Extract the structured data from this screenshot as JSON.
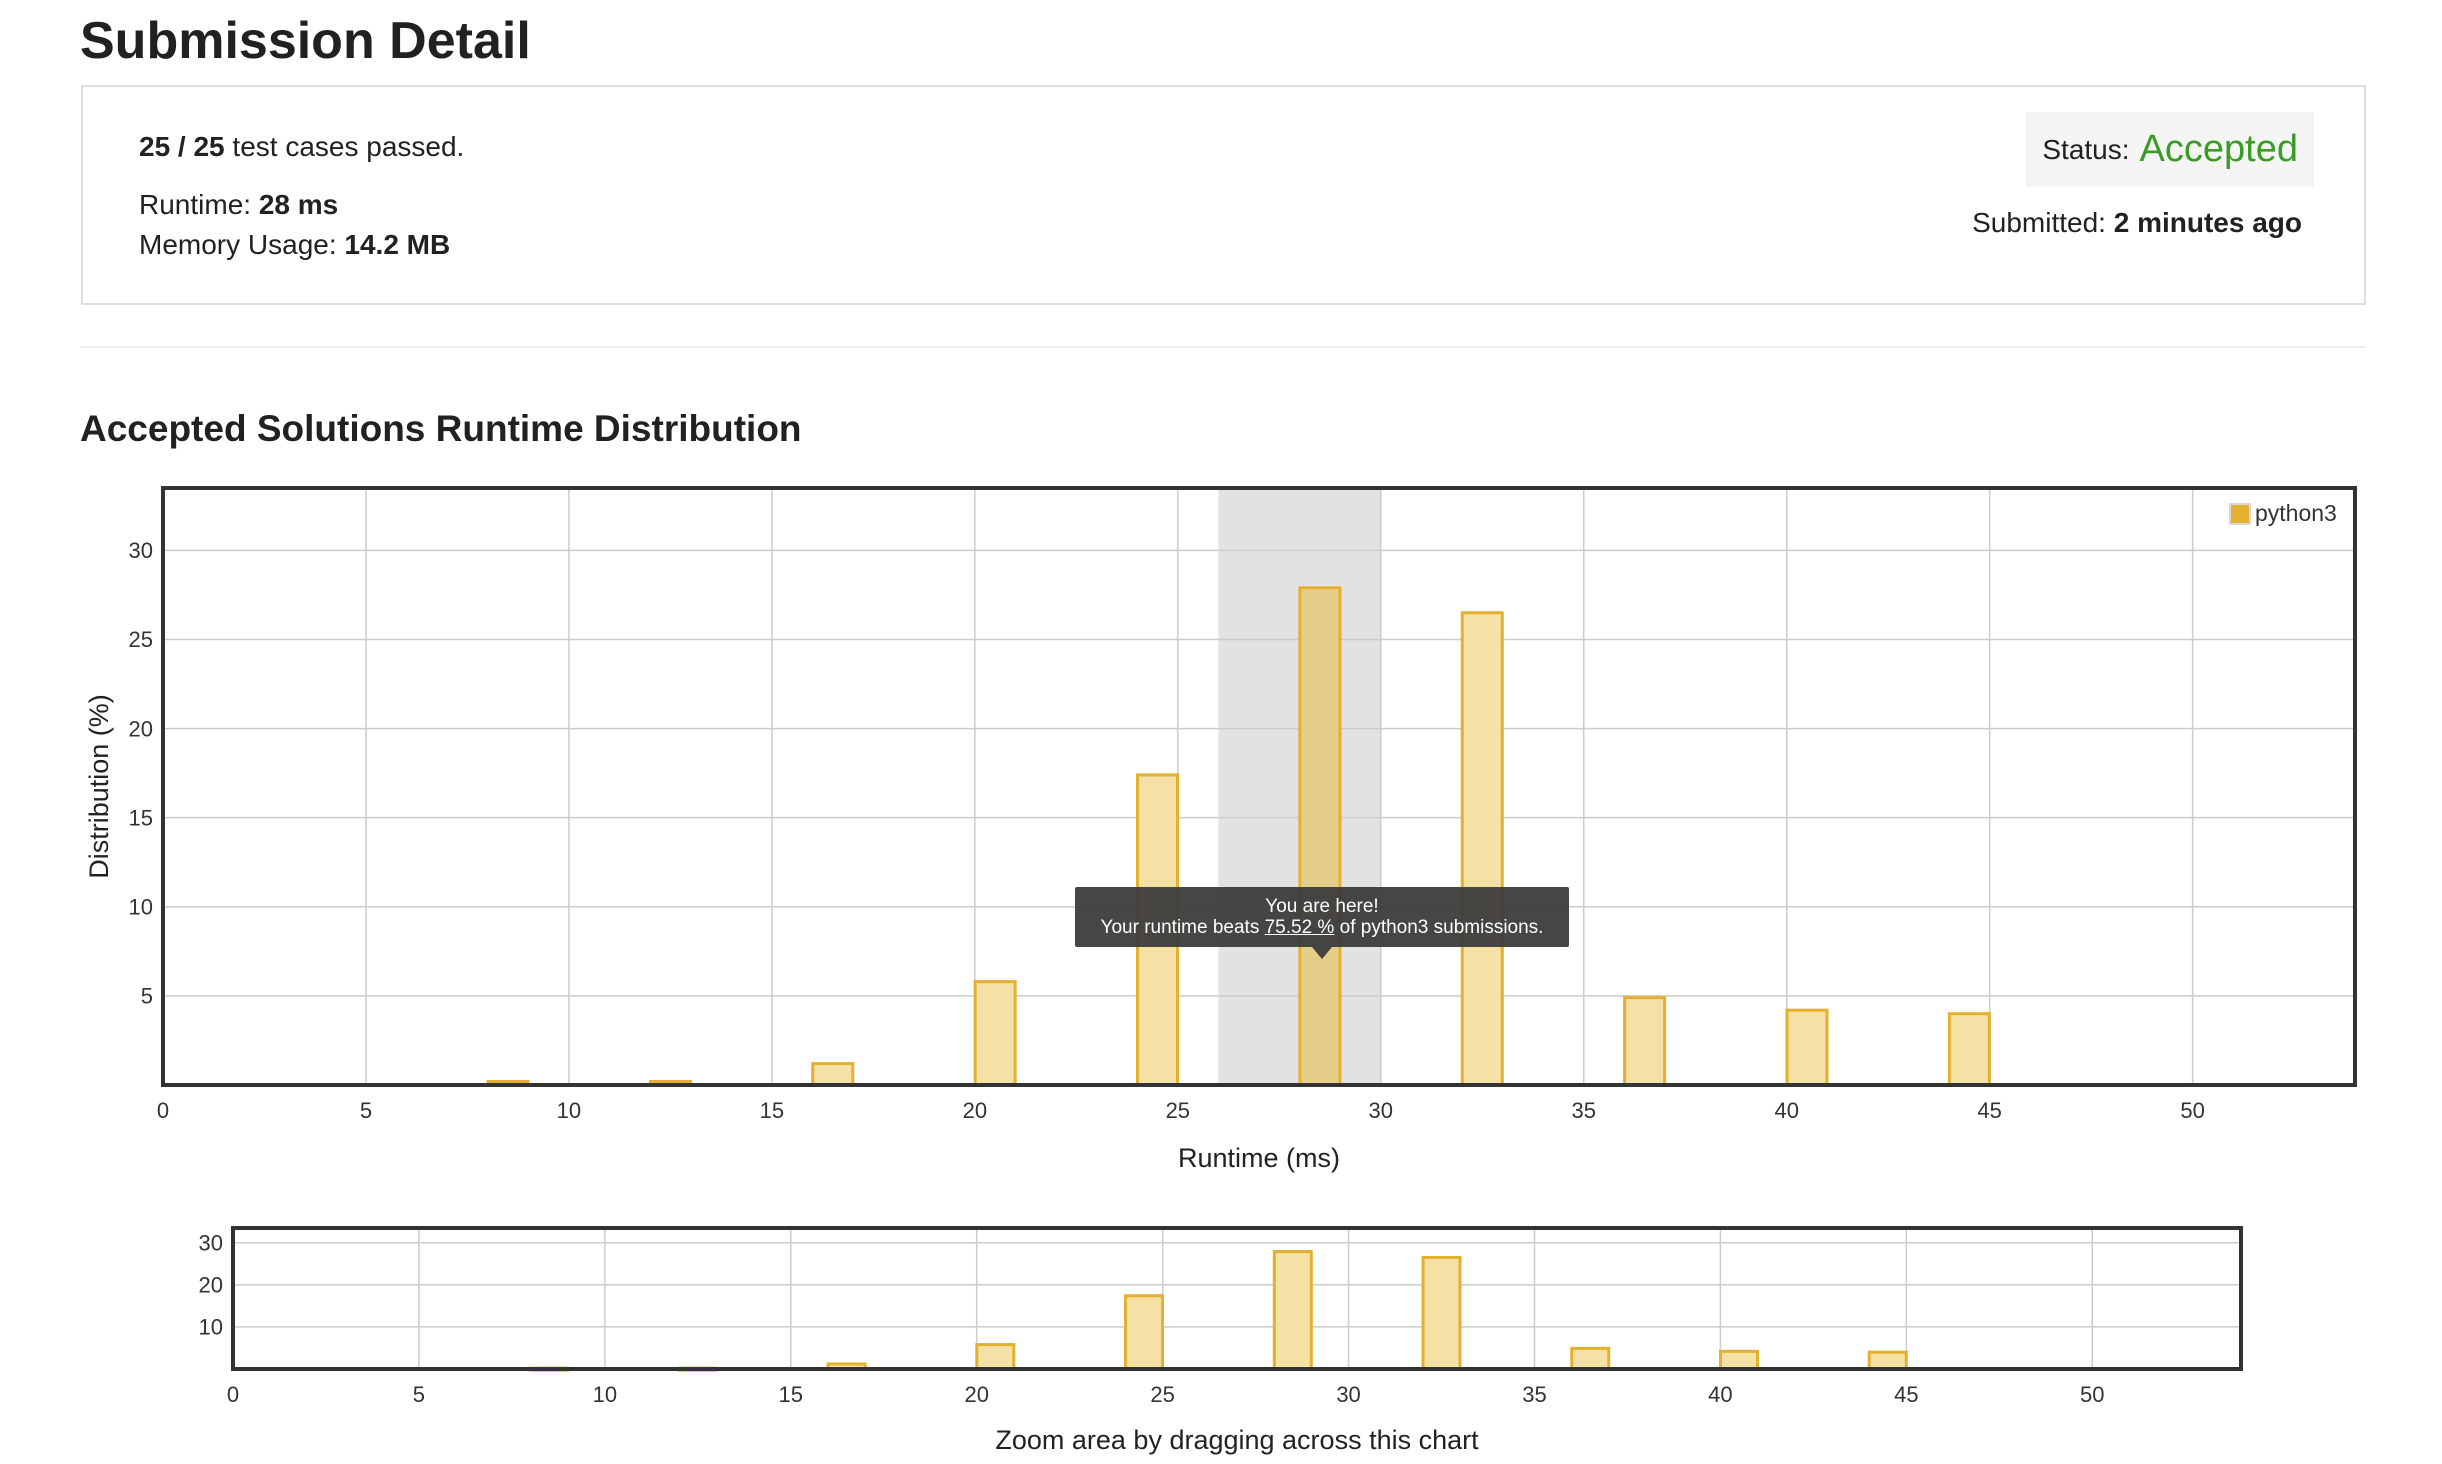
{
  "page": {
    "title": "Submission Detail"
  },
  "summary": {
    "passed": "25 / 25",
    "passed_suffix": "test cases passed.",
    "runtime_label": "Runtime:",
    "runtime_value": "28 ms",
    "memory_label": "Memory Usage:",
    "memory_value": "14.2 MB",
    "status_label": "Status:",
    "status_value": "Accepted",
    "status_color": "#3a9d23",
    "submitted_label": "Submitted:",
    "submitted_value": "2 minutes ago"
  },
  "section": {
    "title": "Accepted Solutions Runtime Distribution"
  },
  "tooltip": {
    "line1": "You are here!",
    "prefix": "Your runtime beats",
    "percent": "75.52 %",
    "suffix": "of python3 submissions."
  },
  "chart_data": [
    {
      "type": "bar",
      "ylabel": "Distribution (%)",
      "xlabel": "Runtime (ms)",
      "xlim": [
        0,
        54
      ],
      "ylim": [
        0,
        33.5
      ],
      "x_ticks": [
        0,
        5,
        10,
        15,
        20,
        25,
        30,
        35,
        40,
        45,
        50
      ],
      "y_ticks": [
        5,
        10,
        15,
        20,
        25,
        30
      ],
      "grid": true,
      "legend": {
        "position": "top-right",
        "entries": [
          "python3"
        ]
      },
      "series": [
        {
          "name": "python3",
          "color": "#e3b02f",
          "fill": "#f5e0a6",
          "highlight_fill": "#e5cd8a",
          "bars": [
            {
              "x": 8.5,
              "y": 0.2
            },
            {
              "x": 12.5,
              "y": 0.2
            },
            {
              "x": 16.5,
              "y": 1.2
            },
            {
              "x": 20.5,
              "y": 5.8
            },
            {
              "x": 24.5,
              "y": 17.4
            },
            {
              "x": 28.5,
              "y": 27.9
            },
            {
              "x": 32.5,
              "y": 26.5
            },
            {
              "x": 36.5,
              "y": 4.9
            },
            {
              "x": 40.5,
              "y": 4.2
            },
            {
              "x": 44.5,
              "y": 4.0
            }
          ]
        }
      ],
      "highlight_range": [
        26,
        30
      ],
      "highlight_bar_x": 28.5
    },
    {
      "type": "bar",
      "xlabel": "Zoom area by dragging across this chart",
      "xlim": [
        0,
        54
      ],
      "ylim": [
        0,
        33.5
      ],
      "x_ticks": [
        0,
        5,
        10,
        15,
        20,
        25,
        30,
        35,
        40,
        45,
        50
      ],
      "y_ticks": [
        10,
        20,
        30
      ],
      "grid": true,
      "series": [
        {
          "name": "python3",
          "bars": [
            {
              "x": 8.5,
              "y": 0.2
            },
            {
              "x": 12.5,
              "y": 0.2
            },
            {
              "x": 16.5,
              "y": 1.2
            },
            {
              "x": 20.5,
              "y": 5.8
            },
            {
              "x": 24.5,
              "y": 17.4
            },
            {
              "x": 28.5,
              "y": 27.9
            },
            {
              "x": 32.5,
              "y": 26.5
            },
            {
              "x": 36.5,
              "y": 4.9
            },
            {
              "x": 40.5,
              "y": 4.2
            },
            {
              "x": 44.5,
              "y": 4.0
            }
          ]
        }
      ]
    }
  ]
}
